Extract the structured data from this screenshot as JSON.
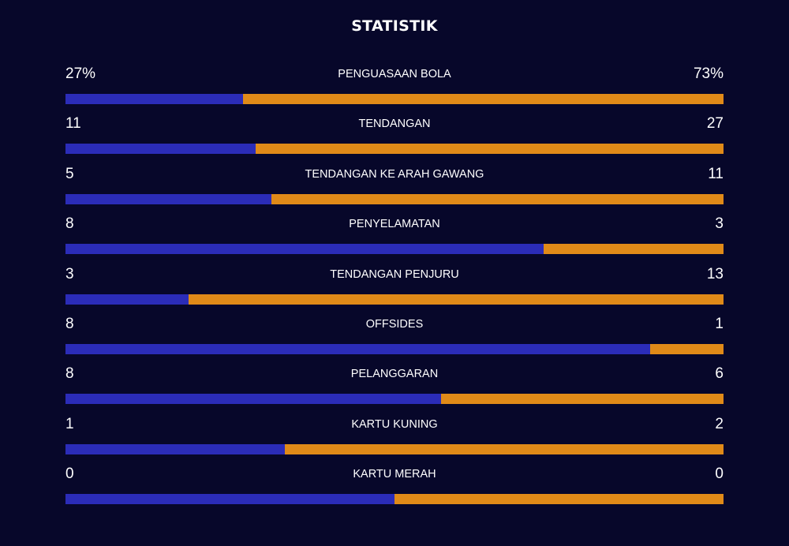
{
  "header": {
    "title": "STATISTIK"
  },
  "colors": {
    "background": "#07072a",
    "home_bar": "#2b2cb8",
    "away_bar": "#e08a18",
    "text": "#ffffff"
  },
  "stats": [
    {
      "key": "possession",
      "label": "PENGUASAAN BOLA",
      "home": "27%",
      "away": "73%",
      "home_share": 0.27
    },
    {
      "key": "shots",
      "label": "TENDANGAN",
      "home": "11",
      "away": "27",
      "home_share": 0.289
    },
    {
      "key": "shots-on-target",
      "label": "TENDANGAN KE ARAH GAWANG",
      "home": "5",
      "away": "11",
      "home_share": 0.3125
    },
    {
      "key": "saves",
      "label": "PENYELAMATAN",
      "home": "8",
      "away": "3",
      "home_share": 0.727
    },
    {
      "key": "corners",
      "label": "TENDANGAN PENJURU",
      "home": "3",
      "away": "13",
      "home_share": 0.1875
    },
    {
      "key": "offsides",
      "label": "OFFSIDES",
      "home": "8",
      "away": "1",
      "home_share": 0.889
    },
    {
      "key": "fouls",
      "label": "PELANGGARAN",
      "home": "8",
      "away": "6",
      "home_share": 0.571
    },
    {
      "key": "yellow-cards",
      "label": "KARTU KUNING",
      "home": "1",
      "away": "2",
      "home_share": 0.333
    },
    {
      "key": "red-cards",
      "label": "KARTU MERAH",
      "home": "0",
      "away": "0",
      "home_share": 0.5
    }
  ]
}
